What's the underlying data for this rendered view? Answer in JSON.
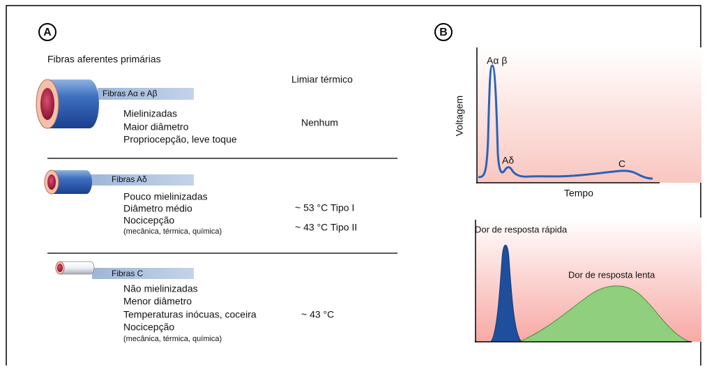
{
  "panel_a": {
    "label": "A",
    "title": "Fibras aferentes primárias",
    "threshold_header": "Limiar térmico",
    "fibers": [
      {
        "name": "Fibras Aα e Aβ",
        "properties": [
          "Mielinizadas",
          "Maior diâmetro",
          "Propriocepção, leve toque"
        ],
        "thresholds": [
          "Nenhum"
        ]
      },
      {
        "name": "Fibras Aδ",
        "properties": [
          "Pouco mielinizadas",
          "Diâmetro médio",
          "Nocicepção",
          "(mecânica, térmica, química)"
        ],
        "thresholds": [
          "~ 53 °C Tipo I",
          "~ 43 °C Tipo II"
        ]
      },
      {
        "name": "Fibras C",
        "properties": [
          "Não mielinizadas",
          "Menor diâmetro",
          "Temperaturas inócuas, coceira",
          "Nocicepção",
          "(mecânica, térmica, química)"
        ],
        "thresholds": [
          "~ 43 °C"
        ]
      }
    ]
  },
  "panel_b": {
    "label": "B",
    "top_graph": {
      "y_label": "Voltagem",
      "x_label": "Tempo",
      "peaks": [
        "Aα β",
        "Aδ",
        "C"
      ]
    },
    "bottom_graph": {
      "fast_label": "Dor de resposta rápida",
      "slow_label": "Dor de resposta lenta"
    }
  }
}
